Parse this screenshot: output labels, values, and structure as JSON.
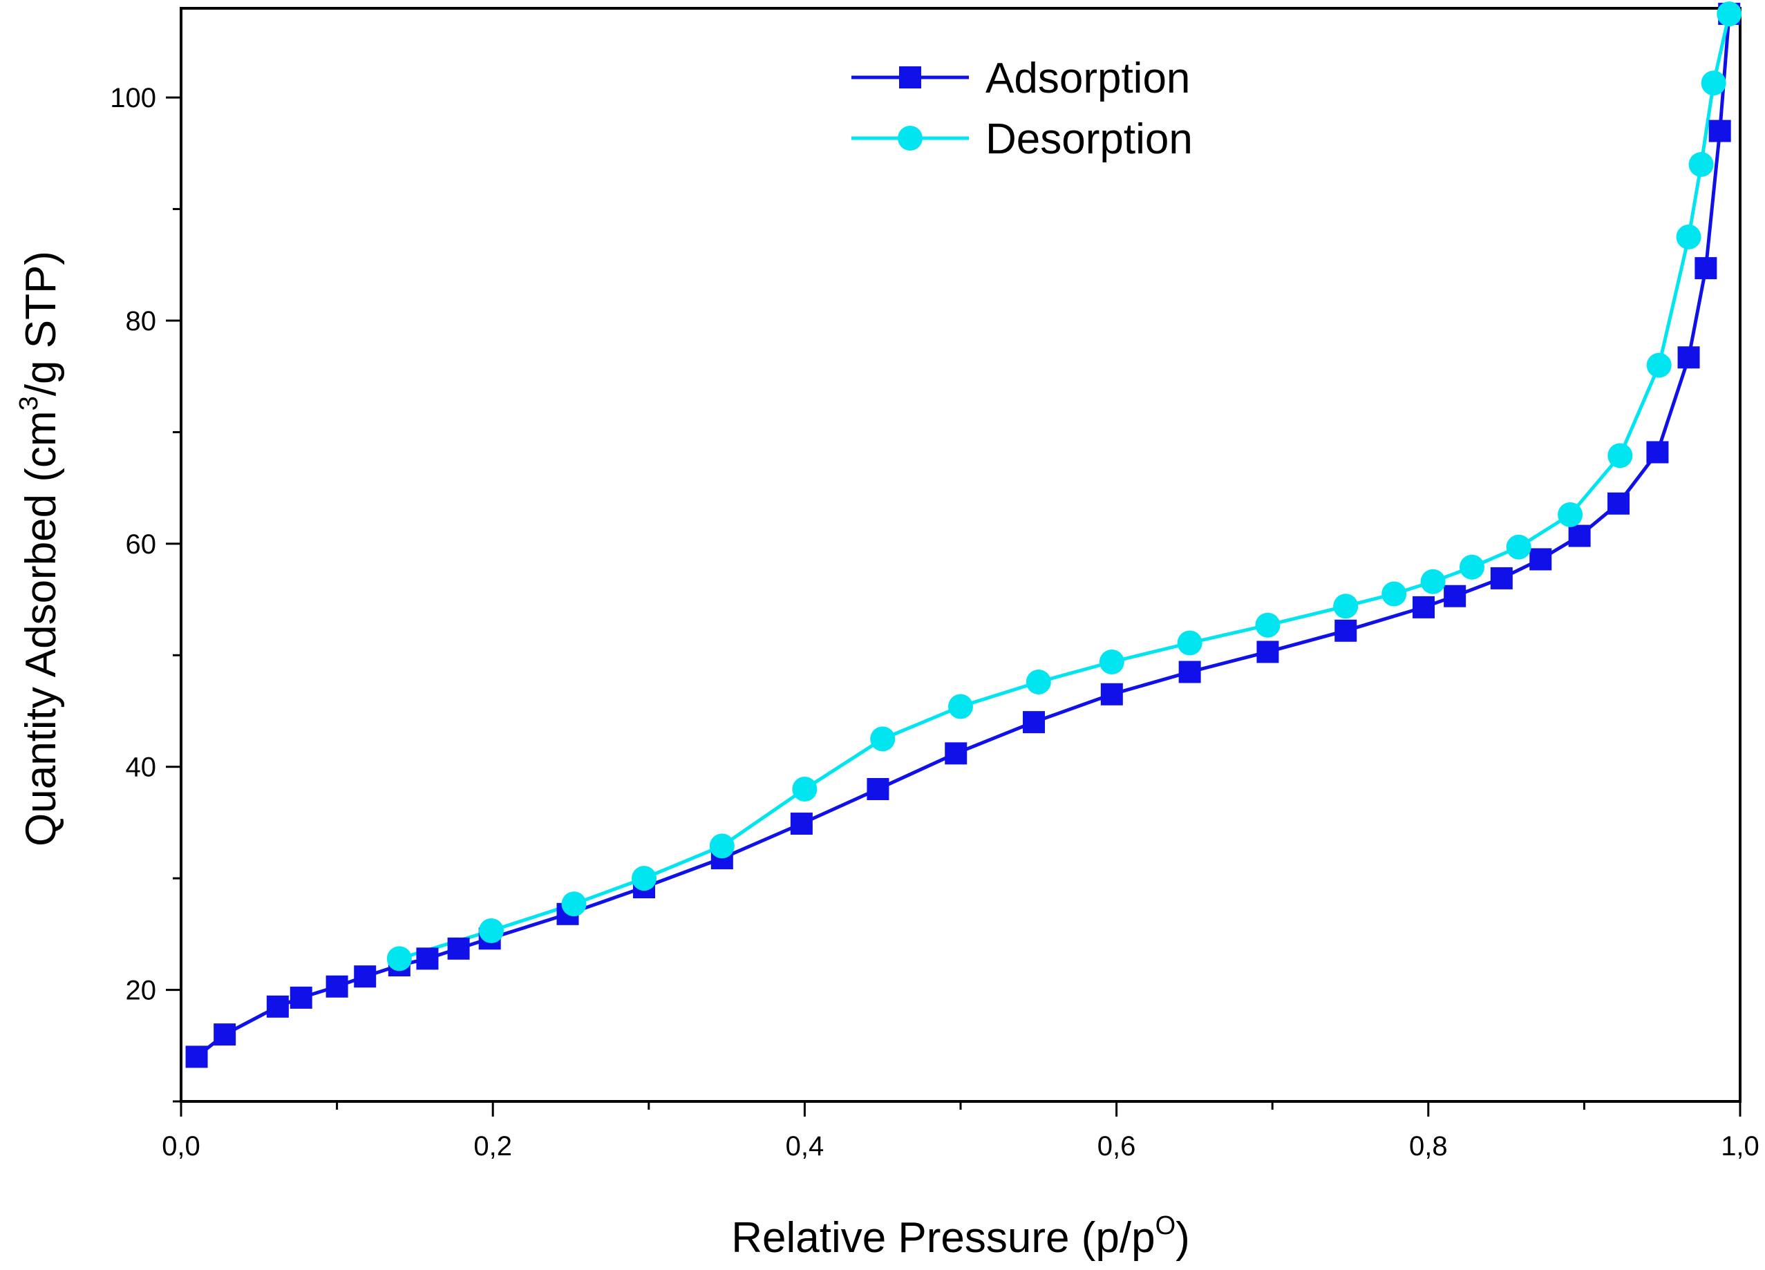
{
  "chart_data": {
    "type": "line",
    "x_axis": {
      "label": "Relative Pressure (p/p",
      "label_sup": "O",
      "label_end": ")",
      "range": [
        0.0,
        1.0
      ],
      "ticks": [
        0.0,
        0.2,
        0.4,
        0.6,
        0.8,
        1.0
      ],
      "tick_labels": [
        "0,0",
        "0,2",
        "0,4",
        "0,6",
        "0,8",
        "1,0"
      ]
    },
    "y_axis": {
      "label": "Quantity Adsorbed (cm",
      "label_sup": "3",
      "label_end": "/g STP)",
      "range": [
        10,
        108
      ],
      "ticks": [
        20,
        40,
        60,
        80,
        100
      ],
      "tick_labels": [
        "20",
        "40",
        "60",
        "80",
        "100"
      ]
    },
    "legend_position": "top-center",
    "series": [
      {
        "name": "Adsorption",
        "marker": "square",
        "color": "#1010e8",
        "points": [
          [
            0.01,
            14.0
          ],
          [
            0.028,
            16.0
          ],
          [
            0.062,
            18.5
          ],
          [
            0.077,
            19.3
          ],
          [
            0.1,
            20.3
          ],
          [
            0.118,
            21.2
          ],
          [
            0.14,
            22.2
          ],
          [
            0.158,
            22.8
          ],
          [
            0.178,
            23.7
          ],
          [
            0.198,
            24.6
          ],
          [
            0.248,
            26.8
          ],
          [
            0.297,
            29.2
          ],
          [
            0.347,
            31.8
          ],
          [
            0.398,
            34.9
          ],
          [
            0.447,
            38.0
          ],
          [
            0.497,
            41.2
          ],
          [
            0.547,
            44.0
          ],
          [
            0.597,
            46.5
          ],
          [
            0.647,
            48.5
          ],
          [
            0.697,
            50.3
          ],
          [
            0.747,
            52.2
          ],
          [
            0.797,
            54.3
          ],
          [
            0.817,
            55.3
          ],
          [
            0.847,
            56.9
          ],
          [
            0.872,
            58.6
          ],
          [
            0.897,
            60.7
          ],
          [
            0.922,
            63.6
          ],
          [
            0.947,
            68.2
          ],
          [
            0.967,
            76.7
          ],
          [
            0.978,
            84.7
          ],
          [
            0.987,
            97.0
          ],
          [
            0.993,
            107.5
          ]
        ]
      },
      {
        "name": "Desorption",
        "marker": "circle",
        "color": "#00e5ef",
        "points": [
          [
            0.993,
            107.5
          ],
          [
            0.983,
            101.3
          ],
          [
            0.975,
            94.0
          ],
          [
            0.967,
            87.5
          ],
          [
            0.948,
            76.0
          ],
          [
            0.923,
            67.9
          ],
          [
            0.891,
            62.6
          ],
          [
            0.858,
            59.7
          ],
          [
            0.828,
            57.9
          ],
          [
            0.803,
            56.6
          ],
          [
            0.778,
            55.5
          ],
          [
            0.747,
            54.4
          ],
          [
            0.697,
            52.7
          ],
          [
            0.647,
            51.1
          ],
          [
            0.597,
            49.4
          ],
          [
            0.55,
            47.6
          ],
          [
            0.5,
            45.4
          ],
          [
            0.45,
            42.5
          ],
          [
            0.4,
            38.0
          ],
          [
            0.347,
            32.9
          ],
          [
            0.297,
            30.0
          ],
          [
            0.252,
            27.7
          ],
          [
            0.199,
            25.3
          ],
          [
            0.14,
            22.8
          ]
        ]
      }
    ]
  }
}
